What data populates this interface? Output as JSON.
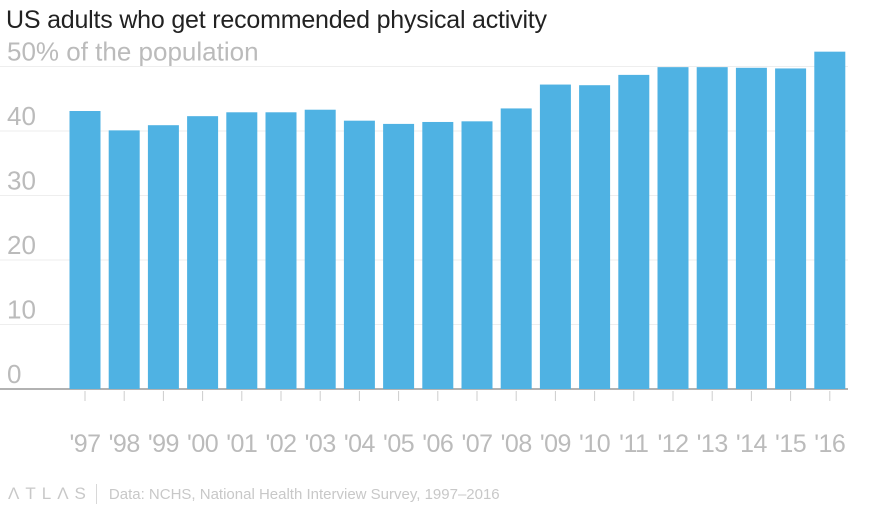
{
  "title": "US adults who get recommended physical activity",
  "footer": {
    "logo": "ΛTLΛS",
    "source": "Data: NCHS, National Health Interview Survey, 1997–2016"
  },
  "colors": {
    "bar": "#4fb2e3",
    "grid": "#eeeeee",
    "axis": "#999999",
    "tick_label": "#bbbbbb"
  },
  "chart_data": {
    "type": "bar",
    "categories": [
      "'97",
      "'98",
      "'99",
      "'00",
      "'01",
      "'02",
      "'03",
      "'04",
      "'05",
      "'06",
      "'07",
      "'08",
      "'09",
      "'10",
      "'11",
      "'12",
      "'13",
      "'14",
      "'15",
      "'16"
    ],
    "values": [
      43.1,
      40.1,
      40.9,
      42.3,
      42.9,
      42.9,
      43.3,
      41.6,
      41.1,
      41.4,
      41.5,
      43.5,
      47.2,
      47.1,
      48.7,
      49.9,
      49.9,
      49.8,
      49.7,
      52.3
    ],
    "title": "US adults who get recommended physical activity",
    "ylim": [
      0,
      55
    ],
    "yticks": [
      0,
      10,
      20,
      30,
      40,
      50
    ],
    "ytick_labels": [
      "0",
      "10",
      "20",
      "30",
      "40",
      "50% of the population"
    ],
    "grid": true
  }
}
